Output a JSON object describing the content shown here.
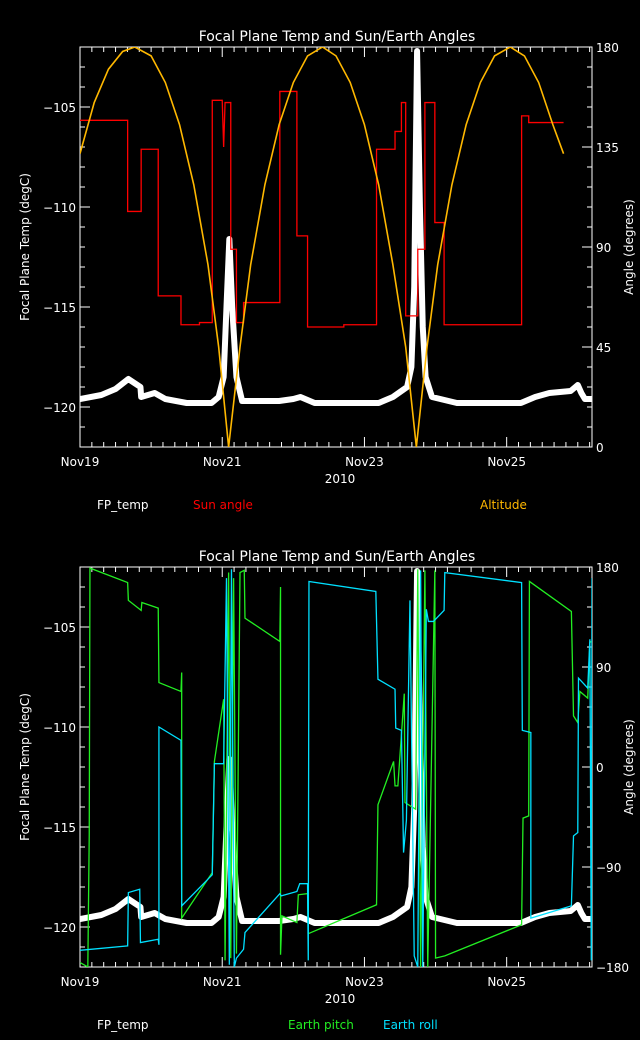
{
  "chart_data": [
    {
      "type": "line",
      "title": "Focal Plane Temp and Sun/Earth Angles",
      "xlabel": "2010",
      "ylabel": "Focal Plane Temp (degC)",
      "ylabel_right": "Angle (degrees)",
      "x_unit": "days since Nov19 00:00",
      "xlim": [
        0,
        7.2
      ],
      "ylim": [
        -122,
        -102
      ],
      "ylim_right": [
        0,
        180
      ],
      "x_ticks": [
        {
          "value": 0,
          "label": "Nov19"
        },
        {
          "value": 2,
          "label": "Nov21"
        },
        {
          "value": 4,
          "label": "Nov23"
        },
        {
          "value": 6,
          "label": "Nov25"
        }
      ],
      "y_ticks": [
        {
          "value": -105,
          "label": "−105"
        },
        {
          "value": -110,
          "label": "−110"
        },
        {
          "value": -115,
          "label": "−115"
        },
        {
          "value": -120,
          "label": "−120"
        }
      ],
      "y_ticks_right": [
        {
          "value": 0,
          "label": "0"
        },
        {
          "value": 45,
          "label": "45"
        },
        {
          "value": 90,
          "label": "90"
        },
        {
          "value": 135,
          "label": "135"
        },
        {
          "value": 180,
          "label": "180"
        }
      ],
      "legend": [
        {
          "label": "FP_temp",
          "color": "#ffffff"
        },
        {
          "label": "Sun angle",
          "color": "#ff0000"
        },
        {
          "label": "Altitude",
          "color": "#ffb800"
        }
      ],
      "series": [
        {
          "name": "FP_temp",
          "axis": "left",
          "color": "#ffffff",
          "style": "points",
          "points": "fp"
        },
        {
          "name": "Sun angle",
          "axis": "right",
          "color": "#ff0000",
          "style": "step",
          "points": [
            [
              0,
              147
            ],
            [
              0.67,
              147
            ],
            [
              0.67,
              106
            ],
            [
              0.86,
              106
            ],
            [
              0.86,
              134
            ],
            [
              1.1,
              134
            ],
            [
              1.1,
              68
            ],
            [
              1.42,
              68
            ],
            [
              1.42,
              55
            ],
            [
              1.68,
              55
            ],
            [
              1.68,
              56
            ],
            [
              1.86,
              56
            ],
            [
              1.86,
              156
            ],
            [
              2.0,
              156
            ],
            [
              2.02,
              135
            ],
            [
              2.04,
              155
            ],
            [
              2.12,
              155
            ],
            [
              2.12,
              89
            ],
            [
              2.2,
              89
            ],
            [
              2.2,
              56
            ],
            [
              2.3,
              56
            ],
            [
              2.3,
              65
            ],
            [
              2.81,
              65
            ],
            [
              2.81,
              160
            ],
            [
              3.05,
              160
            ],
            [
              3.05,
              95
            ],
            [
              3.2,
              95
            ],
            [
              3.2,
              54
            ],
            [
              3.71,
              54
            ],
            [
              3.71,
              55
            ],
            [
              4.17,
              55
            ],
            [
              4.17,
              134
            ],
            [
              4.43,
              134
            ],
            [
              4.43,
              142
            ],
            [
              4.52,
              142
            ],
            [
              4.52,
              155
            ],
            [
              4.58,
              155
            ],
            [
              4.58,
              59
            ],
            [
              4.75,
              59
            ],
            [
              4.75,
              89
            ],
            [
              4.85,
              89
            ],
            [
              4.85,
              155
            ],
            [
              4.99,
              155
            ],
            [
              4.99,
              101
            ],
            [
              5.12,
              101
            ],
            [
              5.12,
              55
            ],
            [
              6.21,
              55
            ],
            [
              6.21,
              149
            ],
            [
              6.31,
              149
            ],
            [
              6.31,
              146
            ],
            [
              6.8,
              146
            ]
          ]
        },
        {
          "name": "Altitude",
          "axis": "right",
          "color": "#ffb800",
          "style": "line",
          "points": [
            [
              0,
              132
            ],
            [
              0.2,
              155
            ],
            [
              0.4,
              170
            ],
            [
              0.6,
              178
            ],
            [
              0.77,
              180
            ],
            [
              1.0,
              176
            ],
            [
              1.2,
              164
            ],
            [
              1.4,
              145
            ],
            [
              1.6,
              118
            ],
            [
              1.8,
              82
            ],
            [
              1.95,
              45
            ],
            [
              2.09,
              0
            ],
            [
              2.25,
              45
            ],
            [
              2.4,
              82
            ],
            [
              2.6,
              118
            ],
            [
              2.8,
              145
            ],
            [
              3.0,
              164
            ],
            [
              3.2,
              176
            ],
            [
              3.41,
              180
            ],
            [
              3.6,
              176
            ],
            [
              3.8,
              164
            ],
            [
              4.0,
              145
            ],
            [
              4.2,
              118
            ],
            [
              4.4,
              82
            ],
            [
              4.58,
              45
            ],
            [
              4.73,
              0
            ],
            [
              4.88,
              45
            ],
            [
              5.03,
              82
            ],
            [
              5.23,
              118
            ],
            [
              5.43,
              145
            ],
            [
              5.63,
              164
            ],
            [
              5.83,
              176
            ],
            [
              6.05,
              180
            ],
            [
              6.25,
              176
            ],
            [
              6.45,
              164
            ],
            [
              6.65,
              145
            ],
            [
              6.8,
              132
            ]
          ]
        }
      ]
    },
    {
      "type": "line",
      "title": "Focal Plane Temp and Sun/Earth Angles",
      "xlabel": "2010",
      "ylabel": "Focal Plane Temp (degC)",
      "ylabel_right": "Angle (degrees)",
      "x_unit": "days since Nov19 00:00",
      "xlim": [
        0,
        7.2
      ],
      "ylim": [
        -122,
        -102
      ],
      "ylim_right": [
        -180,
        180
      ],
      "x_ticks": [
        {
          "value": 0,
          "label": "Nov19"
        },
        {
          "value": 2,
          "label": "Nov21"
        },
        {
          "value": 4,
          "label": "Nov23"
        },
        {
          "value": 6,
          "label": "Nov25"
        }
      ],
      "y_ticks": [
        {
          "value": -105,
          "label": "−105"
        },
        {
          "value": -110,
          "label": "−110"
        },
        {
          "value": -115,
          "label": "−115"
        },
        {
          "value": -120,
          "label": "−120"
        }
      ],
      "y_ticks_right": [
        {
          "value": -180,
          "label": "−180"
        },
        {
          "value": -90,
          "label": "−90"
        },
        {
          "value": 0,
          "label": "0"
        },
        {
          "value": 90,
          "label": "90"
        },
        {
          "value": 180,
          "label": "180"
        }
      ],
      "legend": [
        {
          "label": "FP_temp",
          "color": "#ffffff"
        },
        {
          "label": "Earth pitch",
          "color": "#22ee22"
        },
        {
          "label": "Earth roll",
          "color": "#00e0ff"
        }
      ],
      "series": [
        {
          "name": "FP_temp",
          "axis": "left",
          "color": "#ffffff",
          "style": "points",
          "points": "fp"
        },
        {
          "name": "Earth pitch",
          "axis": "right",
          "color": "#22ee22",
          "style": "line",
          "points": [
            [
              0,
              -176
            ],
            [
              0.11,
              -180
            ],
            [
              0.13,
              -60
            ],
            [
              0.14,
              179
            ],
            [
              0.67,
              166
            ],
            [
              0.68,
              150
            ],
            [
              0.86,
              141
            ],
            [
              0.87,
              148
            ],
            [
              1.1,
              143
            ],
            [
              1.11,
              76
            ],
            [
              1.42,
              68
            ],
            [
              1.43,
              85
            ],
            [
              1.43,
              -136
            ],
            [
              1.86,
              -95
            ],
            [
              1.89,
              5
            ],
            [
              2.02,
              61
            ],
            [
              2.04,
              -174
            ],
            [
              2.09,
              175
            ],
            [
              2.12,
              -172
            ],
            [
              2.16,
              170
            ],
            [
              2.2,
              -168
            ],
            [
              2.25,
              175
            ],
            [
              2.31,
              177
            ],
            [
              2.32,
              134
            ],
            [
              2.81,
              113
            ],
            [
              2.82,
              162
            ],
            [
              2.82,
              -169
            ],
            [
              2.84,
              -134
            ],
            [
              3.05,
              -140
            ],
            [
              3.07,
              -115
            ],
            [
              3.2,
              -114
            ],
            [
              3.21,
              -150
            ],
            [
              4.17,
              -124
            ],
            [
              4.19,
              -34
            ],
            [
              4.41,
              5
            ],
            [
              4.43,
              -17
            ],
            [
              4.47,
              -17
            ],
            [
              4.56,
              66
            ],
            [
              4.57,
              -32
            ],
            [
              4.72,
              -38
            ],
            [
              4.75,
              178
            ],
            [
              4.79,
              -180
            ],
            [
              4.85,
              177
            ],
            [
              4.89,
              -180
            ],
            [
              4.99,
              177
            ],
            [
              5.0,
              -172
            ],
            [
              5.13,
              -170
            ],
            [
              6.21,
              -142
            ],
            [
              6.23,
              -46
            ],
            [
              6.31,
              -44
            ],
            [
              6.32,
              167
            ],
            [
              6.91,
              140
            ],
            [
              6.94,
              46
            ],
            [
              7.0,
              40
            ],
            [
              7.03,
              68
            ],
            [
              7.14,
              62
            ],
            [
              7.17,
              112
            ],
            [
              7.19,
              113
            ]
          ]
        },
        {
          "name": "Earth roll",
          "axis": "right",
          "color": "#00e0ff",
          "style": "line",
          "points": [
            [
              0,
              -165
            ],
            [
              0.67,
              -161
            ],
            [
              0.68,
              -113
            ],
            [
              0.84,
              -110
            ],
            [
              0.85,
              -158
            ],
            [
              1.1,
              -155
            ],
            [
              1.11,
              -160
            ],
            [
              1.11,
              36
            ],
            [
              1.42,
              24
            ],
            [
              1.43,
              -125
            ],
            [
              1.86,
              -97
            ],
            [
              1.89,
              3
            ],
            [
              2.02,
              3
            ],
            [
              2.06,
              170
            ],
            [
              2.1,
              -178
            ],
            [
              2.13,
              178
            ],
            [
              2.17,
              -180
            ],
            [
              2.2,
              -172
            ],
            [
              2.3,
              -164
            ],
            [
              2.32,
              -149
            ],
            [
              2.81,
              -114
            ],
            [
              2.83,
              -116
            ],
            [
              3.05,
              -112
            ],
            [
              3.09,
              -105
            ],
            [
              3.2,
              -105
            ],
            [
              3.21,
              -174
            ],
            [
              3.22,
              167
            ],
            [
              4.16,
              158
            ],
            [
              4.19,
              79
            ],
            [
              4.43,
              70
            ],
            [
              4.44,
              35
            ],
            [
              4.52,
              33
            ],
            [
              4.55,
              -77
            ],
            [
              4.59,
              -48
            ],
            [
              4.64,
              150
            ],
            [
              4.7,
              -170
            ],
            [
              4.75,
              -180
            ],
            [
              4.79,
              177
            ],
            [
              4.82,
              -180
            ],
            [
              4.87,
              142
            ],
            [
              4.9,
              131
            ],
            [
              4.97,
              131
            ],
            [
              5.12,
              141
            ],
            [
              5.13,
              175
            ],
            [
              6.21,
              166
            ],
            [
              6.22,
              33
            ],
            [
              6.34,
              31
            ],
            [
              6.34,
              -136
            ],
            [
              6.91,
              -125
            ],
            [
              6.94,
              -62
            ],
            [
              7.0,
              -59
            ],
            [
              7.01,
              80
            ],
            [
              7.14,
              71
            ],
            [
              7.17,
              115
            ],
            [
              7.19,
              -174
            ],
            [
              7.2,
              170
            ]
          ]
        }
      ]
    }
  ],
  "shared": {
    "fp_temp_points": [
      [
        0,
        -119.6
      ],
      [
        0.3,
        -119.4
      ],
      [
        0.5,
        -119.1
      ],
      [
        0.68,
        -118.6
      ],
      [
        0.85,
        -119.0
      ],
      [
        0.86,
        -119.5
      ],
      [
        1.05,
        -119.3
      ],
      [
        1.2,
        -119.6
      ],
      [
        1.5,
        -119.8
      ],
      [
        1.85,
        -119.8
      ],
      [
        1.95,
        -119.5
      ],
      [
        2.02,
        -118.5
      ],
      [
        2.06,
        -115
      ],
      [
        2.1,
        -111.6
      ],
      [
        2.14,
        -115
      ],
      [
        2.2,
        -118.5
      ],
      [
        2.28,
        -119.7
      ],
      [
        2.8,
        -119.7
      ],
      [
        3.0,
        -119.6
      ],
      [
        3.1,
        -119.5
      ],
      [
        3.3,
        -119.8
      ],
      [
        4.2,
        -119.8
      ],
      [
        4.4,
        -119.5
      ],
      [
        4.6,
        -119.0
      ],
      [
        4.66,
        -118
      ],
      [
        4.7,
        -114
      ],
      [
        4.74,
        -102.2
      ],
      [
        4.78,
        -110
      ],
      [
        4.82,
        -116
      ],
      [
        4.86,
        -118.5
      ],
      [
        4.95,
        -119.5
      ],
      [
        5.3,
        -119.8
      ],
      [
        6.2,
        -119.8
      ],
      [
        6.4,
        -119.5
      ],
      [
        6.6,
        -119.3
      ],
      [
        6.9,
        -119.2
      ],
      [
        7.0,
        -118.9
      ],
      [
        7.05,
        -119.3
      ],
      [
        7.1,
        -119.6
      ],
      [
        7.2,
        -119.6
      ]
    ]
  }
}
